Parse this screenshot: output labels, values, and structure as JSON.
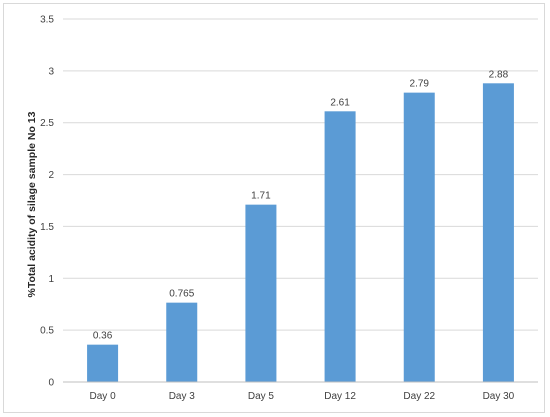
{
  "chart_data": {
    "type": "bar",
    "title": "",
    "xlabel": "",
    "ylabel": "%Total acidity of silage sample No 13",
    "categories": [
      "Day 0",
      "Day 3",
      "Day 5",
      "Day 12",
      "Day 22",
      "Day 30"
    ],
    "values": [
      0.36,
      0.765,
      1.71,
      2.61,
      2.79,
      2.88
    ],
    "data_labels": [
      "0.36",
      "0.765",
      "1.71",
      "2.61",
      "2.79",
      "2.88"
    ],
    "ylim": [
      0,
      3.5
    ],
    "yticks": [
      0,
      0.5,
      1,
      1.5,
      2,
      2.5,
      3,
      3.5
    ],
    "ytick_labels": [
      "0",
      "0.5",
      "1",
      "1.5",
      "2",
      "2.5",
      "3",
      "3.5"
    ],
    "grid": true,
    "legend": "none",
    "colors": {
      "bar": "#5b9bd5",
      "grid": "#d9d9d9",
      "axis": "#bfbfbf",
      "text": "#404040"
    }
  }
}
